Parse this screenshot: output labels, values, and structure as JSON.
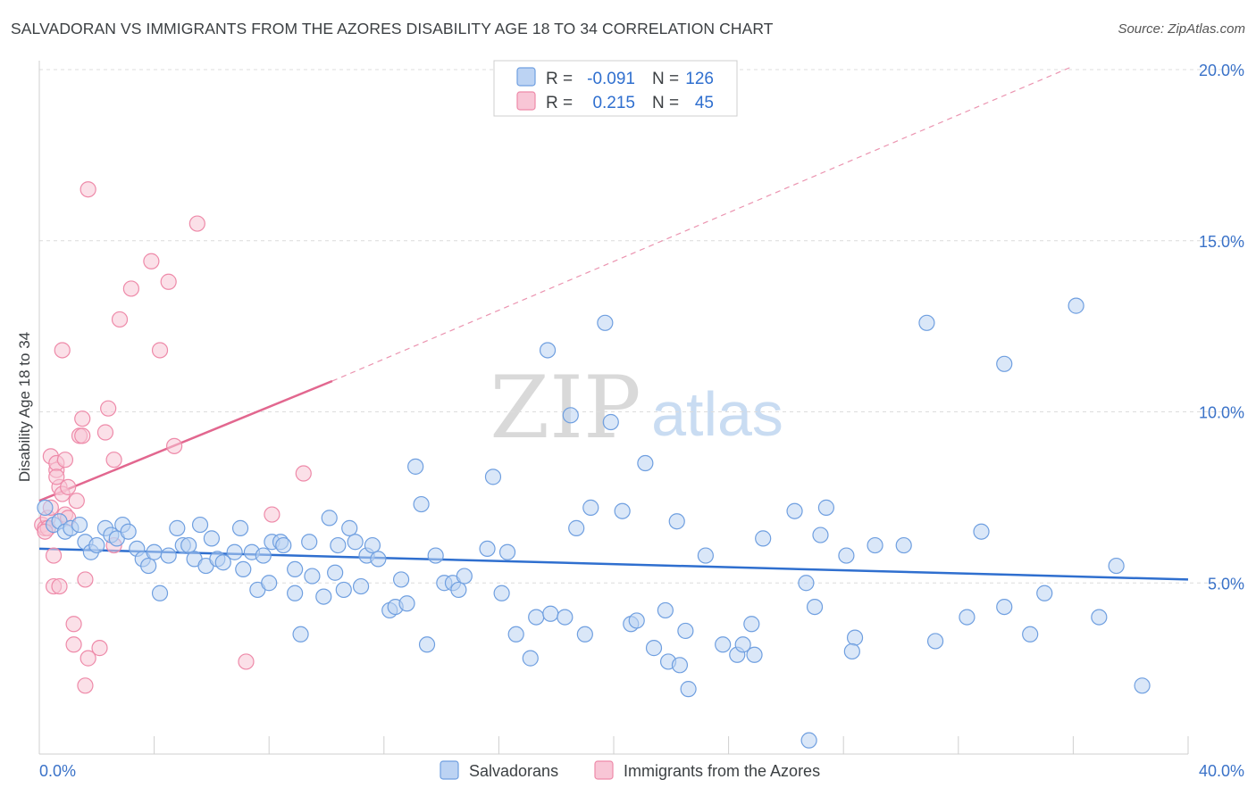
{
  "header": {
    "title": "SALVADORAN VS IMMIGRANTS FROM THE AZORES DISABILITY AGE 18 TO 34 CORRELATION CHART",
    "source": "Source: ZipAtlas.com"
  },
  "watermark": {
    "zip": "ZIP",
    "atlas": "atlas"
  },
  "colors": {
    "blue": "#6f9fe0",
    "blue_fill": "#bcd3f3",
    "blue_line": "#2f6fcf",
    "pink": "#ee8aa9",
    "pink_fill": "#f8c6d6",
    "pink_line": "#e2678f",
    "grid": "#dcdcdc",
    "tick_text": "#3a72c8"
  },
  "legend": {
    "rows": [
      {
        "r_label": "R =",
        "r_value": "-0.091",
        "n_label": "N =",
        "n_value": "126"
      },
      {
        "r_label": "R =",
        "r_value": "0.215",
        "n_label": "N =",
        "n_value": "45"
      }
    ]
  },
  "bottom_legend": {
    "series1": "Salvadorans",
    "series2": "Immigrants from the Azores"
  },
  "chart_data": {
    "type": "scatter",
    "title": "SALVADORAN VS IMMIGRANTS FROM THE AZORES DISABILITY AGE 18 TO 34 CORRELATION CHART",
    "xlabel": "",
    "ylabel": "Disability Age 18 to 34",
    "xlim": [
      0,
      40
    ],
    "ylim": [
      0,
      20
    ],
    "x_tick_labels": [
      "0.0%",
      "40.0%"
    ],
    "y_ticks": [
      5,
      10,
      15,
      20
    ],
    "y_tick_labels": [
      "5.0%",
      "10.0%",
      "15.0%",
      "20.0%"
    ],
    "grid": true,
    "series": [
      {
        "name": "Salvadorans",
        "R": -0.091,
        "N": 126,
        "trend": {
          "x": [
            0,
            40
          ],
          "y": [
            6.0,
            5.1
          ]
        },
        "points": [
          [
            0.2,
            7.2
          ],
          [
            0.5,
            6.7
          ],
          [
            0.7,
            6.8
          ],
          [
            0.9,
            6.5
          ],
          [
            1.1,
            6.6
          ],
          [
            1.4,
            6.7
          ],
          [
            1.6,
            6.2
          ],
          [
            1.8,
            5.9
          ],
          [
            2.0,
            6.1
          ],
          [
            2.3,
            6.6
          ],
          [
            2.5,
            6.4
          ],
          [
            2.7,
            6.3
          ],
          [
            2.9,
            6.7
          ],
          [
            3.1,
            6.5
          ],
          [
            3.4,
            6.0
          ],
          [
            3.6,
            5.7
          ],
          [
            3.8,
            5.5
          ],
          [
            4.0,
            5.9
          ],
          [
            4.2,
            4.7
          ],
          [
            4.5,
            5.8
          ],
          [
            4.8,
            6.6
          ],
          [
            5.0,
            6.1
          ],
          [
            5.2,
            6.1
          ],
          [
            5.4,
            5.7
          ],
          [
            5.6,
            6.7
          ],
          [
            5.8,
            5.5
          ],
          [
            6.0,
            6.3
          ],
          [
            6.2,
            5.7
          ],
          [
            6.4,
            5.6
          ],
          [
            6.8,
            5.9
          ],
          [
            7.0,
            6.6
          ],
          [
            7.1,
            5.4
          ],
          [
            7.4,
            5.9
          ],
          [
            7.6,
            4.8
          ],
          [
            7.8,
            5.8
          ],
          [
            8.0,
            5.0
          ],
          [
            8.1,
            6.2
          ],
          [
            8.4,
            6.2
          ],
          [
            8.5,
            6.1
          ],
          [
            8.9,
            5.4
          ],
          [
            8.9,
            4.7
          ],
          [
            9.1,
            3.5
          ],
          [
            9.4,
            6.2
          ],
          [
            9.5,
            5.2
          ],
          [
            9.9,
            4.6
          ],
          [
            10.1,
            6.9
          ],
          [
            10.3,
            5.3
          ],
          [
            10.4,
            6.1
          ],
          [
            10.6,
            4.8
          ],
          [
            10.8,
            6.6
          ],
          [
            11.0,
            6.2
          ],
          [
            11.2,
            4.9
          ],
          [
            11.4,
            5.8
          ],
          [
            11.6,
            6.1
          ],
          [
            11.8,
            5.7
          ],
          [
            12.2,
            4.2
          ],
          [
            12.4,
            4.3
          ],
          [
            12.6,
            5.1
          ],
          [
            12.8,
            4.4
          ],
          [
            13.1,
            8.4
          ],
          [
            13.3,
            7.3
          ],
          [
            13.5,
            3.2
          ],
          [
            13.8,
            5.8
          ],
          [
            14.1,
            5.0
          ],
          [
            14.4,
            5.0
          ],
          [
            14.6,
            4.8
          ],
          [
            14.8,
            5.2
          ],
          [
            15.6,
            6.0
          ],
          [
            15.8,
            8.1
          ],
          [
            16.1,
            4.7
          ],
          [
            16.3,
            5.9
          ],
          [
            16.6,
            3.5
          ],
          [
            17.1,
            2.8
          ],
          [
            17.3,
            4.0
          ],
          [
            17.7,
            11.8
          ],
          [
            17.8,
            4.1
          ],
          [
            18.3,
            4.0
          ],
          [
            18.7,
            6.6
          ],
          [
            19.0,
            3.5
          ],
          [
            19.2,
            7.2
          ],
          [
            19.7,
            12.6
          ],
          [
            19.9,
            9.7
          ],
          [
            20.3,
            7.1
          ],
          [
            20.6,
            3.8
          ],
          [
            20.8,
            3.9
          ],
          [
            21.1,
            8.5
          ],
          [
            21.4,
            3.1
          ],
          [
            21.8,
            4.2
          ],
          [
            21.9,
            2.7
          ],
          [
            22.3,
            2.6
          ],
          [
            22.5,
            3.6
          ],
          [
            22.6,
            1.9
          ],
          [
            23.2,
            5.8
          ],
          [
            22.2,
            6.8
          ],
          [
            23.8,
            3.2
          ],
          [
            24.3,
            2.9
          ],
          [
            24.5,
            3.2
          ],
          [
            24.8,
            3.8
          ],
          [
            24.9,
            2.9
          ],
          [
            25.2,
            6.3
          ],
          [
            26.3,
            7.1
          ],
          [
            26.7,
            5.0
          ],
          [
            26.8,
            0.4
          ],
          [
            27.0,
            4.3
          ],
          [
            27.2,
            6.4
          ],
          [
            27.4,
            7.2
          ],
          [
            28.1,
            5.8
          ],
          [
            28.4,
            3.4
          ],
          [
            28.3,
            3.0
          ],
          [
            29.1,
            6.1
          ],
          [
            30.1,
            6.1
          ],
          [
            31.2,
            3.3
          ],
          [
            30.9,
            12.6
          ],
          [
            32.3,
            4.0
          ],
          [
            32.8,
            6.5
          ],
          [
            33.6,
            11.4
          ],
          [
            33.6,
            4.3
          ],
          [
            34.5,
            3.5
          ],
          [
            35.0,
            4.7
          ],
          [
            36.1,
            13.1
          ],
          [
            36.9,
            4.0
          ],
          [
            37.5,
            5.5
          ],
          [
            38.4,
            2.0
          ],
          [
            18.5,
            9.9
          ]
        ]
      },
      {
        "name": "Immigrants from the Azores",
        "R": 0.215,
        "N": 45,
        "trend": {
          "x": [
            0,
            10.2
          ],
          "y": [
            7.4,
            10.9
          ]
        },
        "trend_extended": {
          "x": [
            10.2,
            36.0
          ],
          "y": [
            10.9,
            20.1
          ]
        },
        "points": [
          [
            0.1,
            6.7
          ],
          [
            0.2,
            6.6
          ],
          [
            0.3,
            6.9
          ],
          [
            0.4,
            7.2
          ],
          [
            0.4,
            8.7
          ],
          [
            0.5,
            5.8
          ],
          [
            0.5,
            4.9
          ],
          [
            0.6,
            8.3
          ],
          [
            0.6,
            8.5
          ],
          [
            0.7,
            7.8
          ],
          [
            0.7,
            4.9
          ],
          [
            0.8,
            11.8
          ],
          [
            0.8,
            7.6
          ],
          [
            0.9,
            8.6
          ],
          [
            0.9,
            7.0
          ],
          [
            1.0,
            7.8
          ],
          [
            1.0,
            6.9
          ],
          [
            1.2,
            3.8
          ],
          [
            1.2,
            3.2
          ],
          [
            1.3,
            7.4
          ],
          [
            1.4,
            9.3
          ],
          [
            1.5,
            9.8
          ],
          [
            1.5,
            9.3
          ],
          [
            1.6,
            5.1
          ],
          [
            1.6,
            2.0
          ],
          [
            1.7,
            2.8
          ],
          [
            1.7,
            16.5
          ],
          [
            2.1,
            3.1
          ],
          [
            2.3,
            9.4
          ],
          [
            2.4,
            10.1
          ],
          [
            2.6,
            8.6
          ],
          [
            2.6,
            6.1
          ],
          [
            2.8,
            12.7
          ],
          [
            3.2,
            13.6
          ],
          [
            3.9,
            14.4
          ],
          [
            4.2,
            11.8
          ],
          [
            4.5,
            13.8
          ],
          [
            4.7,
            9.0
          ],
          [
            5.5,
            15.5
          ],
          [
            7.2,
            2.7
          ],
          [
            8.1,
            7.0
          ],
          [
            9.2,
            8.2
          ],
          [
            0.3,
            6.6
          ],
          [
            0.2,
            6.5
          ],
          [
            0.6,
            8.1
          ]
        ]
      }
    ]
  }
}
